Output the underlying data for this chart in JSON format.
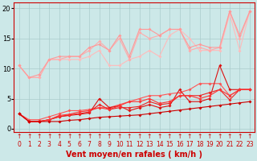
{
  "x": [
    0,
    1,
    2,
    3,
    4,
    5,
    6,
    7,
    8,
    9,
    10,
    11,
    12,
    13,
    14,
    15,
    16,
    17,
    18,
    19,
    20,
    21,
    22,
    23
  ],
  "background_color": "#cce8e8",
  "grid_color": "#aacccc",
  "xlabel": "Vent moyen/en rafales ( km/h )",
  "xlabel_color": "#cc0000",
  "xlabel_fontsize": 7,
  "ylim": [
    -0.5,
    21
  ],
  "xlim": [
    -0.5,
    23.5
  ],
  "yticks": [
    0,
    5,
    10,
    15,
    20
  ],
  "ytick_labels": [
    "0",
    "5",
    "10",
    "15",
    "20"
  ],
  "lines": [
    {
      "y": [
        2.5,
        1.2,
        1.2,
        1.2,
        1.2,
        1.4,
        1.5,
        1.7,
        1.9,
        2.0,
        2.1,
        2.2,
        2.3,
        2.5,
        2.7,
        2.9,
        3.1,
        3.3,
        3.5,
        3.7,
        3.9,
        4.1,
        4.3,
        4.5
      ],
      "color": "#cc0000",
      "lw": 0.8,
      "marker": "D",
      "ms": 2.0,
      "alpha": 1.0,
      "zorder": 5
    },
    {
      "y": [
        2.5,
        1.2,
        1.2,
        1.5,
        2.0,
        2.2,
        2.4,
        2.6,
        5.0,
        3.5,
        3.8,
        3.0,
        3.5,
        4.0,
        3.5,
        3.8,
        6.5,
        4.5,
        4.5,
        5.0,
        10.5,
        6.5,
        6.5,
        6.5
      ],
      "color": "#dd1111",
      "lw": 0.8,
      "marker": "D",
      "ms": 2.0,
      "alpha": 1.0,
      "zorder": 4
    },
    {
      "y": [
        2.5,
        1.2,
        1.2,
        1.5,
        2.0,
        2.3,
        2.5,
        2.8,
        4.0,
        3.2,
        3.5,
        3.5,
        3.7,
        4.5,
        4.0,
        4.2,
        5.5,
        5.5,
        5.5,
        6.0,
        6.5,
        4.8,
        6.5,
        6.5
      ],
      "color": "#ee2222",
      "lw": 0.8,
      "marker": "D",
      "ms": 2.0,
      "alpha": 1.0,
      "zorder": 4
    },
    {
      "y": [
        2.5,
        1.2,
        1.2,
        1.5,
        2.2,
        2.4,
        2.8,
        3.0,
        3.5,
        3.2,
        3.8,
        4.5,
        4.5,
        5.0,
        4.2,
        4.5,
        5.5,
        5.5,
        5.0,
        5.5,
        6.5,
        5.5,
        6.5,
        6.5
      ],
      "color": "#ff3333",
      "lw": 0.8,
      "marker": "D",
      "ms": 2.0,
      "alpha": 1.0,
      "zorder": 4
    },
    {
      "y": [
        2.5,
        1.5,
        1.5,
        2.0,
        2.5,
        3.0,
        3.0,
        3.2,
        3.5,
        3.5,
        4.0,
        4.5,
        5.0,
        5.5,
        5.5,
        5.8,
        6.0,
        6.5,
        7.5,
        7.5,
        7.5,
        5.5,
        6.5,
        6.5
      ],
      "color": "#ff5555",
      "lw": 0.8,
      "marker": "D",
      "ms": 2.0,
      "alpha": 1.0,
      "zorder": 3
    },
    {
      "y": [
        10.5,
        8.5,
        8.5,
        11.5,
        11.5,
        11.5,
        11.5,
        12.0,
        13.0,
        10.5,
        10.5,
        11.5,
        12.0,
        13.0,
        12.0,
        15.5,
        16.5,
        15.0,
        13.0,
        13.0,
        13.0,
        19.0,
        13.0,
        19.5
      ],
      "color": "#ffbbbb",
      "lw": 0.8,
      "marker": "D",
      "ms": 2.0,
      "alpha": 1.0,
      "zorder": 2
    },
    {
      "y": [
        10.5,
        8.5,
        8.5,
        11.5,
        11.5,
        12.0,
        12.0,
        13.0,
        14.5,
        13.0,
        15.0,
        11.5,
        16.0,
        15.0,
        15.5,
        16.5,
        16.5,
        13.0,
        13.5,
        13.0,
        13.5,
        19.5,
        15.0,
        19.5
      ],
      "color": "#ffaaaa",
      "lw": 0.8,
      "marker": "D",
      "ms": 2.0,
      "alpha": 1.0,
      "zorder": 2
    },
    {
      "y": [
        10.5,
        8.5,
        9.0,
        11.5,
        12.0,
        12.0,
        12.0,
        13.5,
        14.0,
        13.0,
        15.5,
        12.0,
        16.5,
        16.5,
        15.5,
        16.5,
        16.5,
        13.5,
        14.0,
        13.5,
        13.5,
        19.5,
        15.5,
        19.5
      ],
      "color": "#ff9999",
      "lw": 0.8,
      "marker": "D",
      "ms": 2.0,
      "alpha": 1.0,
      "zorder": 2
    }
  ],
  "tick_fontsize": 5.5,
  "ytick_fontsize": 6,
  "arrow_char": "↑",
  "spine_color": "#cc0000"
}
